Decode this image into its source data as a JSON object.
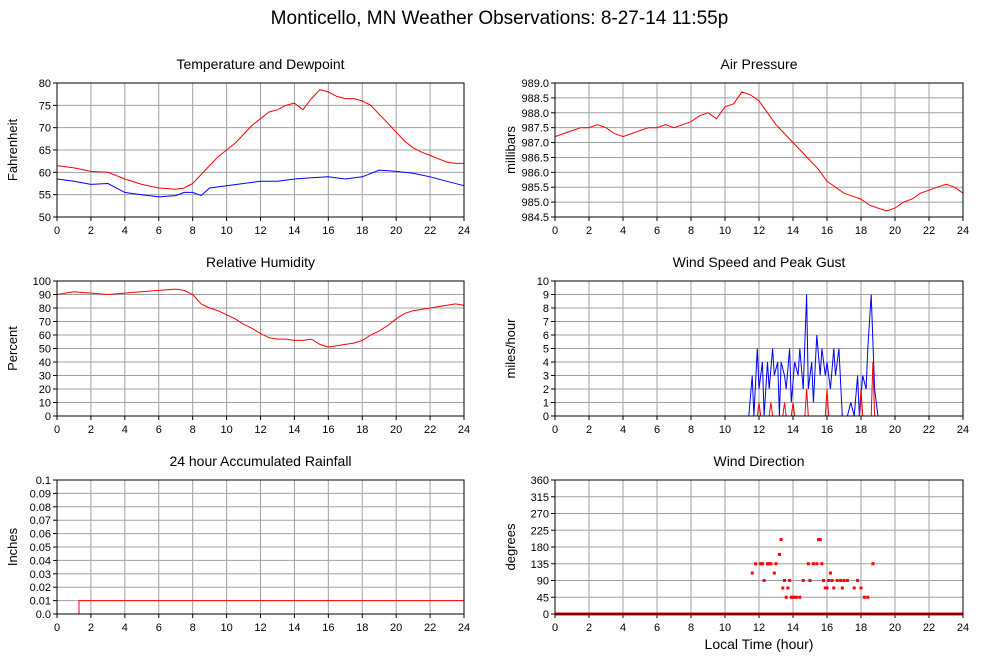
{
  "title": "Monticello, MN Weather Observations: 8-27-14 11:55p",
  "x_axis": {
    "label": "Local Time (hour)",
    "ticks": [
      "0",
      "2",
      "4",
      "6",
      "8",
      "10",
      "12",
      "14",
      "16",
      "18",
      "20",
      "22",
      "24"
    ]
  },
  "colors": {
    "red": "#ff0000",
    "blue": "#0000ff",
    "grid": "#a0a0a0"
  },
  "chart_data": [
    {
      "type": "line",
      "title": "Temperature and Dewpoint",
      "ylabel": "Fahrenheit",
      "xlim": [
        0,
        24
      ],
      "ylim": [
        50,
        80
      ],
      "yticks": [
        "50",
        "55",
        "60",
        "65",
        "70",
        "75",
        "80"
      ],
      "grid": true,
      "series": [
        {
          "color": "#ff0000",
          "x": [
            0,
            1,
            2,
            3,
            4,
            5,
            6,
            7,
            7.5,
            8,
            8.5,
            9,
            9.5,
            10,
            10.5,
            11,
            11.5,
            12,
            12.5,
            13,
            13.5,
            14,
            14.5,
            15,
            15.5,
            16,
            16.5,
            17,
            17.5,
            18,
            18.5,
            19,
            19.5,
            20,
            20.5,
            21,
            21.5,
            22,
            22.5,
            23,
            23.5,
            24
          ],
          "y": [
            61.5,
            61,
            60.2,
            60,
            58.5,
            57.3,
            56.5,
            56.2,
            56.5,
            57.5,
            59.5,
            61.5,
            63.5,
            65,
            66.5,
            68.5,
            70.5,
            72,
            73.5,
            74,
            75,
            75.5,
            74,
            76.5,
            78.5,
            78,
            77,
            76.5,
            76.5,
            76,
            75,
            73,
            71,
            69,
            67,
            65.5,
            64.5,
            63.8,
            63,
            62.3,
            62,
            62
          ]
        },
        {
          "color": "#0000ff",
          "x": [
            0,
            1,
            2,
            3,
            4,
            5,
            6,
            7,
            7.5,
            8,
            8.5,
            9,
            10,
            11,
            12,
            13,
            14,
            15,
            16,
            17,
            18,
            19,
            20,
            21,
            22,
            23,
            24
          ],
          "y": [
            58.5,
            58,
            57.3,
            57.5,
            55.5,
            55,
            54.5,
            54.8,
            55.5,
            55.5,
            54.8,
            56.5,
            57,
            57.5,
            58,
            58,
            58.5,
            58.8,
            59,
            58.5,
            59,
            60.5,
            60.2,
            59.8,
            59,
            58,
            57
          ]
        }
      ]
    },
    {
      "type": "line",
      "title": "Air Pressure",
      "ylabel": "millibars",
      "xlim": [
        0,
        24
      ],
      "ylim": [
        984.5,
        989.0
      ],
      "yticks": [
        "984.5",
        "985.0",
        "985.5",
        "986.0",
        "986.5",
        "987.0",
        "987.5",
        "988.0",
        "988.5",
        "989.0"
      ],
      "grid": true,
      "series": [
        {
          "color": "#ff0000",
          "x": [
            0,
            0.5,
            1,
            1.5,
            2,
            2.5,
            3,
            3.5,
            4,
            4.5,
            5,
            5.5,
            6,
            6.5,
            7,
            7.5,
            8,
            8.5,
            9,
            9.5,
            10,
            10.5,
            11,
            11.5,
            12,
            12.5,
            13,
            13.5,
            14,
            14.5,
            15,
            15.5,
            16,
            16.5,
            17,
            17.5,
            18,
            18.5,
            19,
            19.5,
            20,
            20.5,
            21,
            21.5,
            22,
            22.5,
            23,
            23.5,
            24
          ],
          "y": [
            987.2,
            987.3,
            987.4,
            987.5,
            987.5,
            987.6,
            987.5,
            987.3,
            987.2,
            987.3,
            987.4,
            987.5,
            987.5,
            987.6,
            987.5,
            987.6,
            987.7,
            987.9,
            988.0,
            987.8,
            988.2,
            988.3,
            988.7,
            988.6,
            988.4,
            988.0,
            987.6,
            987.3,
            987.0,
            986.7,
            986.4,
            986.1,
            985.7,
            985.5,
            985.3,
            985.2,
            985.1,
            984.9,
            984.8,
            984.7,
            984.8,
            985.0,
            985.1,
            985.3,
            985.4,
            985.5,
            985.6,
            985.5,
            985.3
          ]
        }
      ]
    },
    {
      "type": "line",
      "title": "Relative Humidity",
      "ylabel": "Percent",
      "xlim": [
        0,
        24
      ],
      "ylim": [
        0,
        100
      ],
      "yticks": [
        "0",
        "10",
        "20",
        "30",
        "40",
        "50",
        "60",
        "70",
        "80",
        "90",
        "100"
      ],
      "grid": true,
      "series": [
        {
          "color": "#ff0000",
          "x": [
            0,
            1,
            2,
            3,
            4,
            5,
            6,
            7,
            7.5,
            8,
            8.5,
            9,
            9.5,
            10,
            10.5,
            11,
            11.5,
            12,
            12.5,
            13,
            13.5,
            14,
            14.5,
            15,
            15.5,
            16,
            16.5,
            17,
            17.5,
            18,
            18.5,
            19,
            19.5,
            20,
            20.5,
            21,
            21.5,
            22,
            22.5,
            23,
            23.5,
            24
          ],
          "y": [
            90,
            92,
            91,
            90,
            91,
            92,
            93,
            94,
            93,
            90,
            83,
            80,
            78,
            75,
            72,
            68,
            65,
            61,
            58,
            57,
            57,
            56,
            56,
            57,
            53,
            51,
            52,
            53,
            54,
            56,
            60,
            63,
            67,
            72,
            76,
            78,
            79,
            80,
            81,
            82,
            83,
            82
          ]
        }
      ]
    },
    {
      "type": "line",
      "title": "Wind Speed and Peak Gust",
      "ylabel": "miles/hour",
      "xlim": [
        0,
        24
      ],
      "ylim": [
        0,
        10
      ],
      "yticks": [
        "0",
        "1",
        "2",
        "3",
        "4",
        "5",
        "6",
        "7",
        "8",
        "9",
        "10"
      ],
      "grid": true,
      "series": [
        {
          "color": "#0000ff",
          "x": [
            0,
            11.4,
            11.6,
            11.7,
            11.9,
            12.0,
            12.2,
            12.3,
            12.5,
            12.6,
            12.8,
            12.9,
            13.1,
            13.2,
            13.3,
            13.5,
            13.6,
            13.8,
            13.9,
            14.1,
            14.3,
            14.4,
            14.6,
            14.8,
            14.9,
            15.1,
            15.2,
            15.4,
            15.6,
            15.7,
            15.9,
            16.0,
            16.2,
            16.4,
            16.5,
            16.7,
            16.9,
            17.0,
            17.2,
            17.4,
            17.6,
            17.8,
            17.9,
            18.1,
            18.3,
            18.4,
            18.6,
            18.8,
            19.0,
            24
          ],
          "y": [
            0,
            0,
            3,
            0,
            5,
            2,
            4,
            0,
            4,
            2,
            5,
            3,
            4,
            0,
            4,
            3,
            2,
            5,
            1,
            4,
            3,
            5,
            2,
            9,
            2,
            4,
            1,
            6,
            3,
            5,
            3,
            4,
            2,
            5,
            3,
            5,
            0,
            0,
            0,
            1,
            0,
            3,
            0,
            3,
            2,
            5,
            9,
            2,
            0,
            0
          ]
        },
        {
          "color": "#ff0000",
          "x": [
            0,
            11.9,
            12.0,
            12.1,
            12.6,
            12.7,
            12.8,
            13.4,
            13.5,
            13.6,
            13.9,
            14.0,
            14.1,
            14.7,
            14.8,
            14.9,
            15.9,
            16.0,
            16.1,
            17.9,
            18.0,
            18.1,
            18.6,
            18.7,
            18.8,
            24
          ],
          "y": [
            0,
            0,
            1,
            0,
            0,
            1,
            0,
            0,
            1,
            0,
            0,
            1,
            0,
            0,
            2,
            0,
            0,
            2,
            0,
            0,
            2,
            0,
            0,
            4,
            0,
            0
          ]
        }
      ]
    },
    {
      "type": "line",
      "title": "24 hour Accumulated Rainfall",
      "ylabel": "Inches",
      "xlim": [
        0,
        24
      ],
      "ylim": [
        0,
        0.1
      ],
      "yticks": [
        "0.0",
        "0.01",
        "0.02",
        "0.03",
        "0.04",
        "0.05",
        "0.06",
        "0.07",
        "0.08",
        "0.09",
        "0.1"
      ],
      "grid": true,
      "series": [
        {
          "color": "#ff0000",
          "x": [
            0,
            1.3,
            1.3,
            24
          ],
          "y": [
            0,
            0,
            0.01,
            0.01
          ]
        }
      ]
    },
    {
      "type": "scatter",
      "title": "Wind Direction",
      "ylabel": "degrees",
      "xlabel": "Local Time (hour)",
      "xlim": [
        0,
        24
      ],
      "ylim": [
        0,
        360
      ],
      "yticks": [
        "0",
        "45",
        "90",
        "135",
        "180",
        "225",
        "270",
        "315",
        "360"
      ],
      "grid": true,
      "baseline": {
        "value": 0,
        "from": 0,
        "to": 24
      },
      "series": [
        {
          "color": "#ff0000",
          "x": [
            11.6,
            11.8,
            12.1,
            12.2,
            12.3,
            12.5,
            12.6,
            12.7,
            12.9,
            13.0,
            13.2,
            13.3,
            13.4,
            13.5,
            13.6,
            13.7,
            13.8,
            13.9,
            14.0,
            14.1,
            14.2,
            14.4,
            14.6,
            14.9,
            15.0,
            15.2,
            15.4,
            15.5,
            15.6,
            15.7,
            15.8,
            15.9,
            16.0,
            16.1,
            16.2,
            16.3,
            16.4,
            16.6,
            16.8,
            16.9,
            17.0,
            17.2,
            17.4,
            17.6,
            17.8,
            18.0,
            18.2,
            18.4,
            18.7
          ],
          "y": [
            110,
            135,
            135,
            135,
            90,
            135,
            135,
            135,
            110,
            135,
            160,
            200,
            70,
            90,
            45,
            70,
            90,
            45,
            45,
            45,
            45,
            45,
            90,
            135,
            90,
            135,
            135,
            200,
            200,
            135,
            90,
            70,
            70,
            90,
            110,
            90,
            70,
            90,
            90,
            70,
            90,
            90,
            0,
            70,
            90,
            70,
            45,
            45,
            135
          ]
        }
      ]
    }
  ]
}
